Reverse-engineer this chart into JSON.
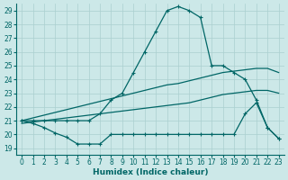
{
  "xlabel": "Humidex (Indice chaleur)",
  "bg_color": "#cce8e8",
  "line_color": "#006666",
  "grid_color": "#aacfcf",
  "xlim": [
    -0.5,
    23.5
  ],
  "ylim": [
    18.5,
    29.5
  ],
  "xticks": [
    0,
    1,
    2,
    3,
    4,
    5,
    6,
    7,
    8,
    9,
    10,
    11,
    12,
    13,
    14,
    15,
    16,
    17,
    18,
    19,
    20,
    21,
    22,
    23
  ],
  "yticks": [
    19,
    20,
    21,
    22,
    23,
    24,
    25,
    26,
    27,
    28,
    29
  ],
  "series": [
    {
      "x": [
        0,
        1,
        2,
        3,
        4,
        5,
        6,
        7,
        8,
        9,
        10,
        11,
        12,
        13,
        14,
        15,
        16,
        17,
        18,
        19,
        20,
        21,
        22,
        23
      ],
      "y": [
        21.0,
        21.0,
        21.0,
        21.0,
        21.0,
        21.0,
        21.0,
        21.5,
        22.5,
        23.0,
        24.5,
        26.0,
        27.5,
        29.0,
        29.3,
        29.0,
        28.5,
        25.0,
        25.0,
        24.5,
        24.0,
        22.5,
        20.5,
        19.7
      ],
      "marker": true
    },
    {
      "x": [
        0,
        1,
        2,
        3,
        4,
        5,
        6,
        7,
        8,
        9,
        10,
        11,
        12,
        13,
        14,
        15,
        16,
        17,
        18,
        19,
        20,
        21,
        22,
        23
      ],
      "y": [
        21.0,
        21.2,
        21.4,
        21.6,
        21.8,
        22.0,
        22.2,
        22.4,
        22.6,
        22.8,
        23.0,
        23.2,
        23.4,
        23.6,
        23.7,
        23.9,
        24.1,
        24.3,
        24.5,
        24.6,
        24.7,
        24.8,
        24.8,
        24.5
      ],
      "marker": false
    },
    {
      "x": [
        0,
        1,
        2,
        3,
        4,
        5,
        6,
        7,
        8,
        9,
        10,
        11,
        12,
        13,
        14,
        15,
        16,
        17,
        18,
        19,
        20,
        21,
        22,
        23
      ],
      "y": [
        20.8,
        20.9,
        21.0,
        21.1,
        21.2,
        21.3,
        21.4,
        21.5,
        21.6,
        21.7,
        21.8,
        21.9,
        22.0,
        22.1,
        22.2,
        22.3,
        22.5,
        22.7,
        22.9,
        23.0,
        23.1,
        23.2,
        23.2,
        23.0
      ],
      "marker": false
    },
    {
      "x": [
        0,
        1,
        2,
        3,
        4,
        5,
        6,
        7,
        8,
        9,
        10,
        11,
        12,
        13,
        14,
        15,
        16,
        17,
        18,
        19,
        20,
        21,
        22,
        23
      ],
      "y": [
        21.0,
        20.8,
        20.5,
        20.1,
        19.8,
        19.3,
        19.3,
        19.3,
        20.0,
        20.0,
        20.0,
        20.0,
        20.0,
        20.0,
        20.0,
        20.0,
        20.0,
        20.0,
        20.0,
        20.0,
        21.5,
        22.3,
        20.5,
        19.7
      ],
      "marker": true
    }
  ]
}
